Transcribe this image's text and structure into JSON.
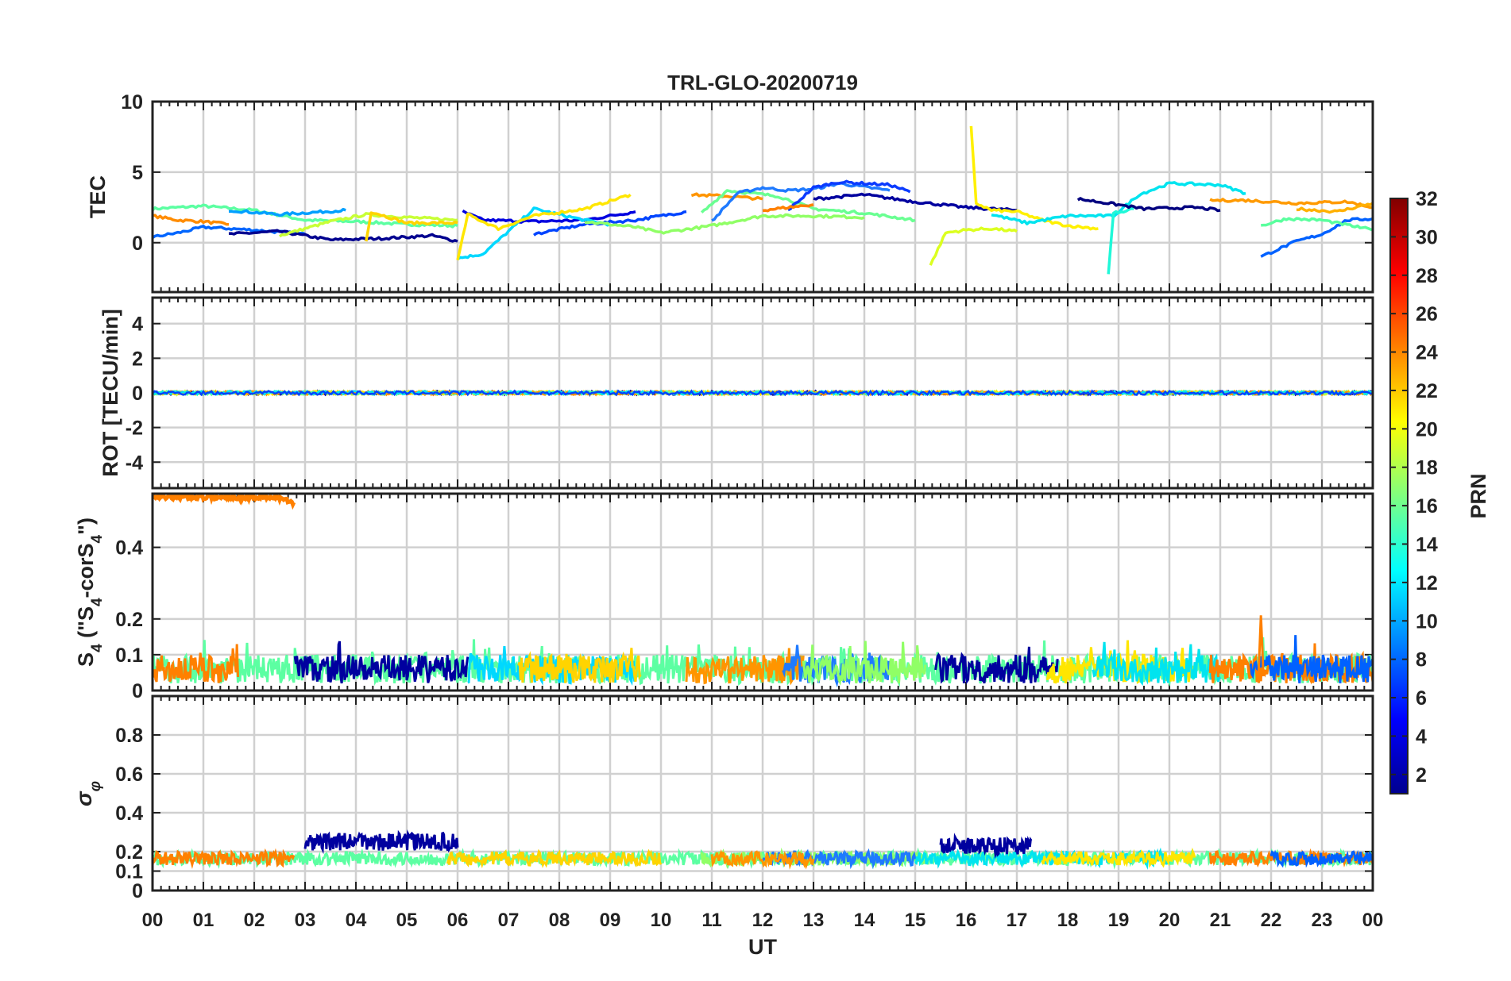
{
  "chart_data": {
    "type": "line",
    "title": "TRL-GLO-20200719",
    "xlabel": "UT",
    "x_ticks": [
      "00",
      "01",
      "02",
      "03",
      "04",
      "05",
      "06",
      "07",
      "08",
      "09",
      "10",
      "11",
      "12",
      "13",
      "14",
      "15",
      "16",
      "17",
      "18",
      "19",
      "20",
      "21",
      "22",
      "23",
      "00"
    ],
    "xlim": [
      0,
      24
    ],
    "colorbar": {
      "label": "PRN",
      "range": [
        1,
        32
      ],
      "ticks": [
        "2",
        "4",
        "6",
        "8",
        "10",
        "12",
        "14",
        "16",
        "18",
        "20",
        "22",
        "24",
        "26",
        "28",
        "30",
        "32"
      ],
      "colormap": "jet"
    },
    "panels": [
      {
        "name": "tec",
        "ylabel": "TEC",
        "ylim": [
          -3.5,
          10
        ],
        "yticks": [
          0,
          5,
          10
        ],
        "ytick_labels": [
          "0",
          "5",
          "10"
        ],
        "series": [
          {
            "color": "#5cffa2",
            "points": [
              [
                0,
                2.4
              ],
              [
                1,
                2.6
              ],
              [
                2,
                2.3
              ],
              [
                3,
                1.6
              ],
              [
                4,
                1.5
              ],
              [
                5,
                1.3
              ],
              [
                6,
                1.2
              ]
            ]
          },
          {
            "color": "#ff8c00",
            "points": [
              [
                0,
                1.9
              ],
              [
                0.5,
                1.6
              ],
              [
                1,
                1.5
              ],
              [
                1.5,
                1.3
              ]
            ]
          },
          {
            "color": "#0066ff",
            "points": [
              [
                0,
                0.4
              ],
              [
                0.5,
                0.7
              ],
              [
                1,
                1.1
              ],
              [
                2,
                0.9
              ],
              [
                3,
                0.6
              ]
            ]
          },
          {
            "color": "#00a0ff",
            "points": [
              [
                1.5,
                2.3
              ],
              [
                2.5,
                2.0
              ],
              [
                3.8,
                2.3
              ]
            ]
          },
          {
            "color": "#00008f",
            "points": [
              [
                1.5,
                0.6
              ],
              [
                2.5,
                0.8
              ],
              [
                3.5,
                0.2
              ],
              [
                4.5,
                0.3
              ],
              [
                5.5,
                0.5
              ],
              [
                6,
                0.1
              ]
            ]
          },
          {
            "color": "#c8ff36",
            "points": [
              [
                2.5,
                0.5
              ],
              [
                3.5,
                1.5
              ],
              [
                4.2,
                2.0
              ],
              [
                5,
                1.8
              ],
              [
                6,
                1.6
              ]
            ]
          },
          {
            "color": "#ffd400",
            "points": [
              [
                4.2,
                0.1
              ],
              [
                4.3,
                2.2
              ],
              [
                5,
                1.4
              ],
              [
                6,
                1.4
              ]
            ]
          },
          {
            "color": "#0000df",
            "points": [
              [
                6.1,
                2.2
              ],
              [
                6.5,
                1.6
              ],
              [
                7.5,
                1.5
              ],
              [
                8.5,
                1.6
              ],
              [
                9.5,
                2.2
              ]
            ]
          },
          {
            "color": "#00d8ff",
            "points": [
              [
                6,
                -1.1
              ],
              [
                6.5,
                -0.8
              ],
              [
                7,
                0.8
              ],
              [
                7.5,
                2.4
              ],
              [
                8.5,
                1.6
              ],
              [
                9,
                1.3
              ]
            ]
          },
          {
            "color": "#ffe600",
            "points": [
              [
                6,
                -1.3
              ],
              [
                6.2,
                2.0
              ],
              [
                6.8,
                1.0
              ],
              [
                7.5,
                1.9
              ],
              [
                8.5,
                2.4
              ],
              [
                9.4,
                3.4
              ]
            ]
          },
          {
            "color": "#0044ff",
            "points": [
              [
                7.5,
                0.6
              ],
              [
                8.5,
                1.3
              ],
              [
                9.5,
                1.6
              ],
              [
                10.5,
                2.2
              ]
            ]
          },
          {
            "color": "#90ff66",
            "points": [
              [
                8.5,
                1.5
              ],
              [
                9.5,
                1.1
              ],
              [
                10,
                0.7
              ],
              [
                11,
                1.2
              ],
              [
                12,
                1.9
              ],
              [
                13,
                1.9
              ],
              [
                14,
                1.8
              ]
            ]
          },
          {
            "color": "#ff9500",
            "points": [
              [
                10.6,
                3.4
              ],
              [
                11.3,
                3.3
              ],
              [
                12,
                3.1
              ]
            ]
          },
          {
            "color": "#6aff92",
            "points": [
              [
                10.8,
                2.1
              ],
              [
                11.3,
                3.7
              ],
              [
                12.3,
                3.3
              ],
              [
                13,
                2.4
              ],
              [
                14,
                2.1
              ],
              [
                15,
                1.6
              ]
            ]
          },
          {
            "color": "#1f7aff",
            "points": [
              [
                11,
                1.5
              ],
              [
                11.5,
                3.5
              ],
              [
                12,
                3.9
              ],
              [
                12.5,
                3.7
              ],
              [
                13,
                3.8
              ],
              [
                13.5,
                4.2
              ],
              [
                14.5,
                3.7
              ]
            ]
          },
          {
            "color": "#0b3bff",
            "points": [
              [
                12.5,
                2.3
              ],
              [
                13,
                3.9
              ],
              [
                13.5,
                4.3
              ],
              [
                14.5,
                4.1
              ],
              [
                14.9,
                3.6
              ]
            ]
          },
          {
            "color": "#00009f",
            "points": [
              [
                13,
                3.1
              ],
              [
                14,
                3.4
              ],
              [
                15,
                2.9
              ],
              [
                16,
                2.5
              ],
              [
                17,
                2.3
              ]
            ]
          },
          {
            "color": "#ff8000",
            "points": [
              [
                12,
                2.3
              ],
              [
                12.5,
                2.5
              ],
              [
                13,
                2.7
              ]
            ]
          },
          {
            "color": "#dcff20",
            "points": [
              [
                15.3,
                -1.6
              ],
              [
                15.6,
                0.7
              ],
              [
                16,
                0.9
              ],
              [
                16.5,
                1.0
              ],
              [
                17,
                0.8
              ]
            ]
          },
          {
            "color": "#fff000",
            "points": [
              [
                16.1,
                8.2
              ],
              [
                16.2,
                2.8
              ],
              [
                16.5,
                2.3
              ],
              [
                17,
                2.2
              ],
              [
                17.5,
                1.6
              ],
              [
                18,
                1.2
              ],
              [
                18.6,
                1.0
              ]
            ]
          },
          {
            "color": "#00e4ef",
            "points": [
              [
                16.5,
                2.0
              ],
              [
                17.2,
                1.4
              ],
              [
                18,
                1.9
              ],
              [
                18.9,
                1.9
              ],
              [
                19.4,
                3.4
              ],
              [
                20,
                4.2
              ],
              [
                21,
                4.1
              ],
              [
                21.5,
                3.5
              ]
            ]
          },
          {
            "color": "#20f8d8",
            "points": [
              [
                18.8,
                -2.2
              ],
              [
                18.9,
                2.1
              ],
              [
                19.3,
                2.4
              ]
            ]
          },
          {
            "color": "#00007f",
            "points": [
              [
                18.2,
                3.1
              ],
              [
                18.8,
                2.8
              ],
              [
                19.5,
                2.4
              ],
              [
                20.5,
                2.5
              ],
              [
                21,
                2.3
              ]
            ]
          },
          {
            "color": "#ff9a00",
            "points": [
              [
                20.8,
                3.0
              ],
              [
                21.5,
                3.0
              ],
              [
                22.5,
                2.8
              ],
              [
                23.5,
                2.9
              ],
              [
                24,
                2.5
              ]
            ]
          },
          {
            "color": "#0061ff",
            "points": [
              [
                21.8,
                -1.0
              ],
              [
                22.5,
                0.1
              ],
              [
                23,
                0.6
              ],
              [
                23.5,
                1.6
              ],
              [
                24,
                1.7
              ]
            ]
          },
          {
            "color": "#5aff9e",
            "points": [
              [
                21.8,
                1.2
              ],
              [
                22.3,
                1.7
              ],
              [
                23,
                1.6
              ],
              [
                24,
                0.9
              ]
            ]
          },
          {
            "color": "#ffb000",
            "points": [
              [
                22.5,
                2.4
              ],
              [
                23.3,
                2.2
              ],
              [
                24,
                2.8
              ]
            ]
          }
        ]
      },
      {
        "name": "rot",
        "ylabel": "ROT [TECU/min]",
        "ylim": [
          -5.5,
          5.5
        ],
        "yticks": [
          -4,
          -2,
          0,
          2,
          4
        ],
        "ytick_labels": [
          "-4",
          "-2",
          "0",
          "2",
          "4"
        ],
        "note": "all satellites near 0 TECU/min (amplitude about 0.1) over the whole day"
      },
      {
        "name": "s4",
        "ylabel": "S4 (\"S4-corS4\")",
        "ylim": [
          0,
          0.55
        ],
        "yticks": [
          0,
          0.1,
          0.2,
          0.4
        ],
        "ytick_labels": [
          "0",
          "0.1",
          "0.2",
          "0.4"
        ],
        "highlight_series": {
          "color": "#ff8000",
          "range_ut": [
            0.0,
            2.8
          ],
          "level": 0.54
        },
        "note": "background noise floor 0.02 to 0.15 for all satellites; isolated peak 0.21 near 21.8 UT"
      },
      {
        "name": "sigma_phi",
        "ylabel": "σφ",
        "ylim": [
          0,
          1
        ],
        "yticks": [
          0,
          0.1,
          0.2,
          0.4,
          0.6,
          0.8
        ],
        "ytick_labels": [
          "0",
          "0.1",
          "0.2",
          "0.4",
          "0.6",
          "0.8"
        ],
        "enhancements": [
          {
            "color": "#00009f",
            "range_ut": [
              3.0,
              6.0
            ],
            "level": 0.25
          },
          {
            "color": "#00009f",
            "range_ut": [
              15.5,
              17.3
            ],
            "level": 0.23
          }
        ],
        "note": "background level 0.13 to 0.2 for all satellites"
      }
    ]
  }
}
